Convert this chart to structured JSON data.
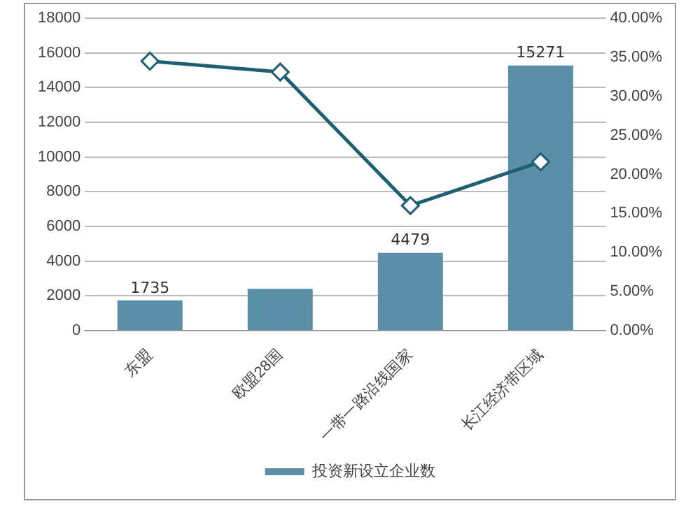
{
  "chart_data": {
    "type": "bar",
    "categories": [
      "东盟",
      "欧盟28国",
      "一带一路沿线国家",
      "长江经济带区域"
    ],
    "series": [
      {
        "name": "投资新设立企业数",
        "color": "#5b8fa8",
        "values": [
          1735,
          2400,
          4479,
          15271
        ],
        "value_labels": [
          "1735",
          null,
          "4479",
          "15271"
        ]
      },
      {
        "type": "line",
        "axis": "y2",
        "color": "#1f5f75",
        "values": [
          34.5,
          33.1,
          16.0,
          21.6
        ],
        "marker": "diamond"
      }
    ],
    "ylim": [
      0,
      18000
    ],
    "yticks": [
      0,
      2000,
      4000,
      6000,
      8000,
      10000,
      12000,
      14000,
      16000,
      18000
    ],
    "y2lim": [
      0,
      40
    ],
    "y2ticks": [
      {
        "value": 0,
        "label": "0.00%"
      },
      {
        "value": 5,
        "label": "5.00%"
      },
      {
        "value": 10,
        "label": "10.00%"
      },
      {
        "value": 15,
        "label": "15.00%"
      },
      {
        "value": 20,
        "label": "20.00%"
      },
      {
        "value": 25,
        "label": "25.00%"
      },
      {
        "value": 30,
        "label": "30.00%"
      },
      {
        "value": 35,
        "label": "35.00%"
      },
      {
        "value": 40,
        "label": "40.00%"
      }
    ],
    "grid": "y",
    "legend": "bottom"
  }
}
